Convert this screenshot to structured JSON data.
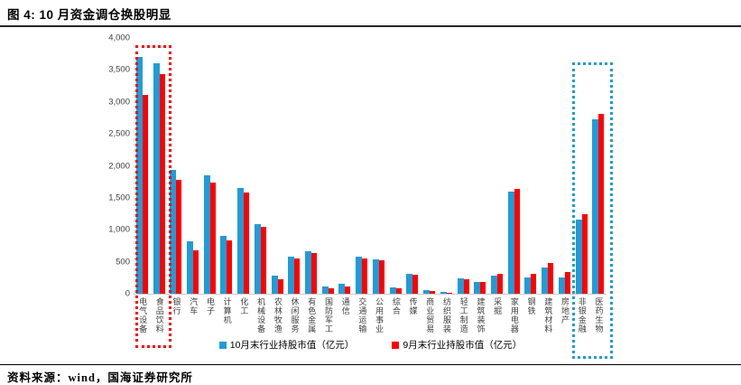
{
  "title": "图 4: 10 月资金调仓换股明显",
  "source_note": "资料来源：wind，国海证券研究所",
  "colors": {
    "october_blue": "#1F9CD8",
    "september_red": "#FF0000",
    "axis_line": "#C9C9C9"
  },
  "chart_data": {
    "type": "bar",
    "title": "图 4: 10 月资金调仓换股明显",
    "categories": [
      "电气设备",
      "食品饮料",
      "银行",
      "汽车",
      "电子",
      "计算机",
      "化工",
      "机械设备",
      "农林牧渔",
      "休闲服务",
      "有色金属",
      "国防军工",
      "通信",
      "交通运输",
      "公用事业",
      "综合",
      "传媒",
      "商业贸易",
      "纺织服装",
      "轻工制造",
      "建筑装饰",
      "采掘",
      "家用电器",
      "钢铁",
      "建筑材料",
      "房地产",
      "非银金融",
      "医药生物"
    ],
    "series": [
      {
        "name": "10月末行业持股市值（亿元）",
        "color": "#1F9CD8",
        "values": [
          3700,
          3600,
          1940,
          820,
          1850,
          905,
          1650,
          1095,
          285,
          580,
          660,
          120,
          155,
          575,
          540,
          105,
          310,
          60,
          30,
          240,
          185,
          280,
          1600,
          260,
          415,
          260,
          1165,
          2730
        ]
      },
      {
        "name": "9月末行业持股市值（亿元）",
        "color": "#FF0000",
        "values": [
          3110,
          3435,
          1780,
          680,
          1740,
          835,
          1590,
          1050,
          225,
          545,
          630,
          90,
          120,
          555,
          520,
          85,
          295,
          45,
          20,
          225,
          180,
          310,
          1640,
          305,
          480,
          345,
          1250,
          2815
        ]
      }
    ],
    "ylim": [
      0,
      4000
    ],
    "yticks": [
      0,
      500,
      1000,
      1500,
      2000,
      2500,
      3000,
      3500,
      4000
    ],
    "ytick_labels": [
      "0",
      "500",
      "1,000",
      "1,500",
      "2,000",
      "2,500",
      "3,000",
      "3,500",
      "4,000"
    ],
    "grid": false,
    "legend_position": "bottom",
    "annotations": [
      {
        "type": "highlight-box",
        "style": "dotted",
        "color": "#FF0000",
        "categories": [
          "电气设备",
          "食品饮料"
        ],
        "start_index": 0,
        "end_index": 1
      },
      {
        "type": "highlight-box",
        "style": "dotted",
        "color": "#1F9CD8",
        "categories": [
          "非银金融",
          "医药生物"
        ],
        "start_index": 26,
        "end_index": 27
      }
    ]
  }
}
